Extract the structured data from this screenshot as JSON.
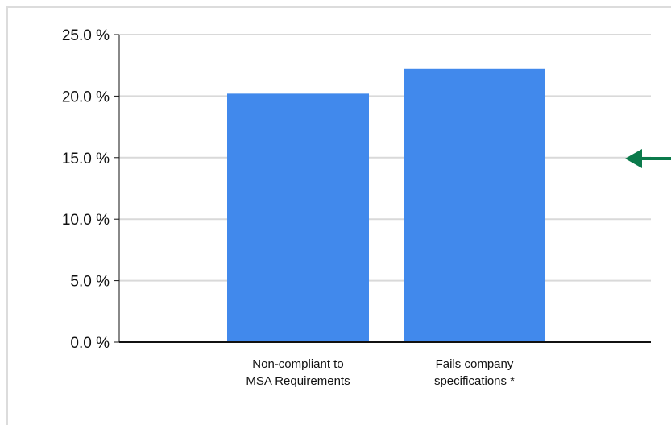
{
  "chart_data": {
    "type": "bar",
    "categories": [
      [
        "Non-compliant to",
        "MSA Requirements"
      ],
      [
        "Fails company",
        "specifications *"
      ]
    ],
    "values": [
      20.2,
      22.2
    ],
    "ylim": [
      0,
      25
    ],
    "yticks": [
      0,
      5,
      10,
      15,
      20,
      25
    ],
    "ytick_labels": [
      "0.0 %",
      "5.0 %",
      "10.0 %",
      "15.0 %",
      "20.0 %",
      "25.0 %"
    ],
    "grid": true,
    "colors": {
      "bar": "#4189EC",
      "grid": "#d9d9d9",
      "axis": "#111111",
      "arrow": "#0B7A4B"
    }
  },
  "annotation": {
    "arrow_icon": "left-arrow-icon"
  }
}
